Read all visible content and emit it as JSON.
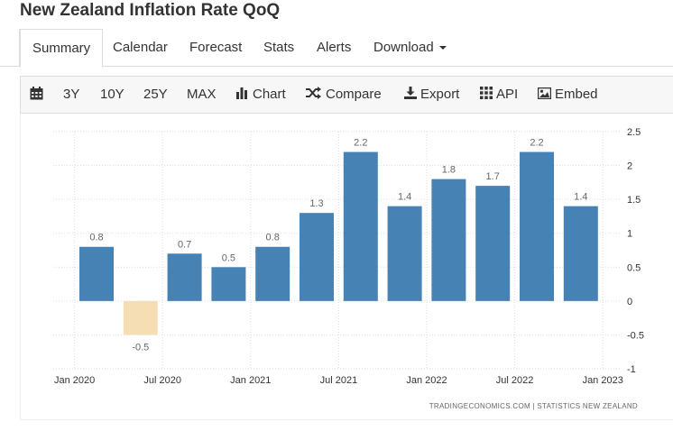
{
  "page": {
    "title": "New Zealand Inflation Rate QoQ"
  },
  "tabs": [
    {
      "label": "Summary",
      "active": true
    },
    {
      "label": "Calendar"
    },
    {
      "label": "Forecast"
    },
    {
      "label": "Stats"
    },
    {
      "label": "Alerts"
    },
    {
      "label": "Download"
    }
  ],
  "toolbar": {
    "calendar_icon": "calendar-icon",
    "range_3y": "3Y",
    "range_10y": "10Y",
    "range_25y": "25Y",
    "range_max": "MAX",
    "chart": "Chart",
    "compare": "Compare",
    "export": "Export",
    "api": "API",
    "embed": "Embed"
  },
  "colors": {
    "positive": "#4682b4",
    "negative": "#f5deb3",
    "grid": "#dddddd",
    "label": "#666666"
  },
  "source": "TRADINGECONOMICS.COM | STATISTICS NEW ZEALAND",
  "chart_data": {
    "type": "bar",
    "categories": [
      "2020-Q1",
      "2020-Q2",
      "2020-Q3",
      "2020-Q4",
      "2021-Q1",
      "2021-Q2",
      "2021-Q3",
      "2021-Q4",
      "2022-Q1",
      "2022-Q2",
      "2022-Q3",
      "2022-Q4"
    ],
    "values": [
      0.8,
      -0.5,
      0.7,
      0.5,
      0.8,
      1.3,
      2.2,
      1.4,
      1.8,
      1.7,
      2.2,
      1.4
    ],
    "value_labels": [
      "0.8",
      "-0.5",
      "0.7",
      "0.5",
      "0.8",
      "1.3",
      "2.2",
      "1.4",
      "1.8",
      "1.7",
      "2.2",
      "1.4"
    ],
    "x_tick_labels": [
      "Jan 2020",
      "Jul 2020",
      "Jan 2021",
      "Jul 2021",
      "Jan 2022",
      "Jul 2022",
      "Jan 2023"
    ],
    "y_ticks": [
      2.5,
      2,
      1.5,
      1,
      0.5,
      0,
      -0.5,
      -1
    ],
    "y_tick_labels": [
      "2.5",
      "2",
      "1.5",
      "1",
      "0.5",
      "0",
      "-0.5",
      "-1"
    ],
    "ylim": [
      -1,
      2.5
    ],
    "title": "",
    "xlabel": "",
    "ylabel": "",
    "grid": "dotted",
    "y_axis_side": "right"
  }
}
